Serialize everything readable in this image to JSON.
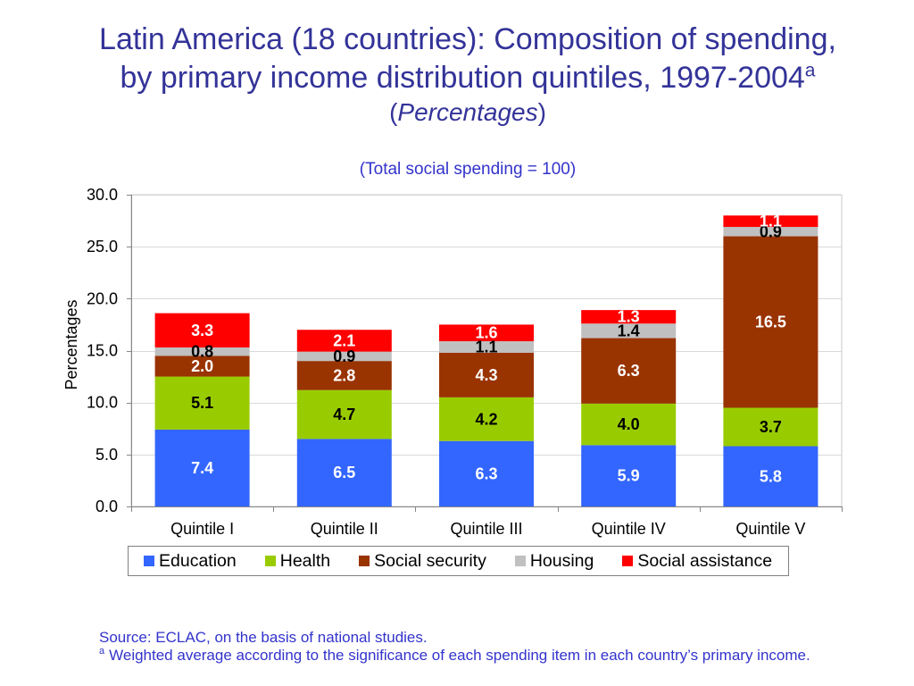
{
  "colors": {
    "title": "#333399",
    "subtitle": "#3333cc",
    "footer": "#3333cc",
    "axis": "#868686",
    "grid": "#d9d9d9"
  },
  "chart_data": {
    "type": "bar",
    "stacked": true,
    "title": [
      "Latin America (18 countries): Composition of spending,",
      "by primary income distribution quintiles, 1997-2004"
    ],
    "title_note_marker": "a",
    "units_line": {
      "open": "(",
      "text": "Percentages",
      "close": ")"
    },
    "subtitle": "(Total social spending = 100)",
    "categories": [
      "Quintile I",
      "Quintile II",
      "Quintile III",
      "Quintile IV",
      "Quintile V"
    ],
    "series": [
      {
        "name": "Education",
        "values": [
          7.4,
          6.5,
          6.3,
          5.9,
          5.8
        ],
        "color": "#3366ff",
        "label_color": "#ffffff"
      },
      {
        "name": "Health",
        "values": [
          5.1,
          4.7,
          4.2,
          4.0,
          3.7
        ],
        "color": "#99cc00",
        "label_color": "#000000"
      },
      {
        "name": "Social security",
        "values": [
          2.0,
          2.8,
          4.3,
          6.3,
          16.5
        ],
        "color": "#993300",
        "label_color": "#ffffff"
      },
      {
        "name": "Housing",
        "values": [
          0.8,
          0.9,
          1.1,
          1.4,
          0.9
        ],
        "color": "#c0c0c0",
        "label_color": "#000000"
      },
      {
        "name": "Social assistance",
        "values": [
          3.3,
          2.1,
          1.6,
          1.3,
          1.1
        ],
        "color": "#ff0000",
        "label_color": "#ffffff"
      }
    ],
    "ylabel": "Percentages",
    "ylim": [
      0,
      30
    ],
    "yticks": [
      0,
      5,
      10,
      15,
      20,
      25,
      30
    ],
    "data_labels": true,
    "grid": true,
    "legend": "bottom"
  },
  "footer": {
    "source": "Source: ECLAC, on the basis of national studies.",
    "note_marker": "a",
    "note": "Weighted average according to the significance of each spending item in each country’s primary income."
  }
}
